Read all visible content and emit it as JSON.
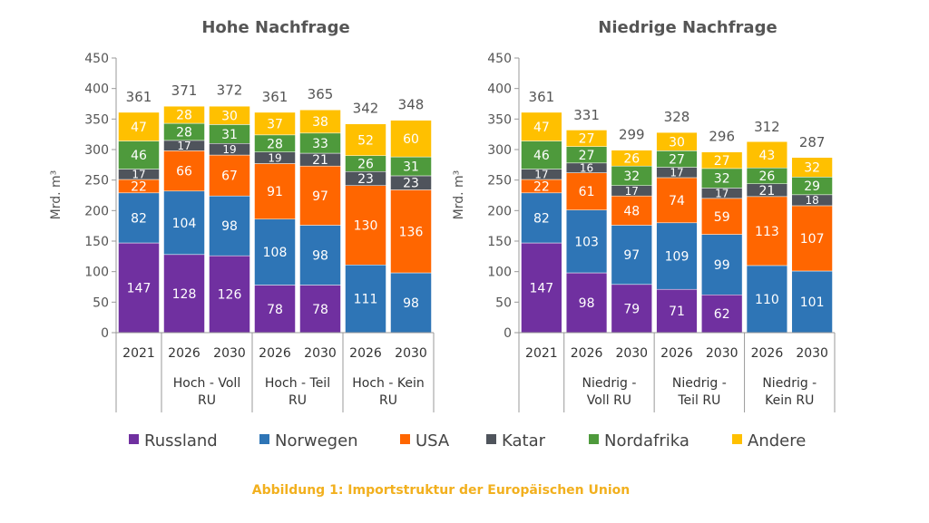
{
  "caption": "Abbildung 1: Importstruktur der Europäischen Union",
  "colors": {
    "Russland": "#7030a0",
    "Norwegen": "#2e75b6",
    "USA": "#ff6600",
    "Katar": "#4f545c",
    "Nordafrika": "#4e9a3c",
    "Andere": "#ffc000",
    "caption": "#f2b01e"
  },
  "legend": [
    "Russland",
    "Norwegen",
    "USA",
    "Katar",
    "Nordafrika",
    "Andere"
  ],
  "chart_data": [
    {
      "type": "bar",
      "stacked": true,
      "title": "Hohe Nachfrage",
      "ylabel": "Mrd. m³",
      "ylim": [
        0,
        450
      ],
      "yticks": [
        0,
        50,
        100,
        150,
        200,
        250,
        300,
        350,
        400,
        450
      ],
      "categories": [
        "2021",
        "2026",
        "2030",
        "2026",
        "2030",
        "2026",
        "2030"
      ],
      "groups": [
        {
          "label": "",
          "count": 1
        },
        {
          "label": "Hoch - Voll|RU",
          "count": 2
        },
        {
          "label": "Hoch - Teil|RU",
          "count": 2
        },
        {
          "label": "Hoch - Kein|RU",
          "count": 2
        }
      ],
      "totals": [
        361,
        371,
        372,
        361,
        365,
        342,
        348
      ],
      "series": [
        {
          "name": "Russland",
          "values": [
            147,
            128,
            126,
            78,
            78,
            0,
            0
          ]
        },
        {
          "name": "Norwegen",
          "values": [
            82,
            104,
            98,
            108,
            98,
            111,
            98
          ]
        },
        {
          "name": "USA",
          "values": [
            22,
            66,
            67,
            91,
            97,
            130,
            136
          ]
        },
        {
          "name": "Katar",
          "values": [
            17,
            17,
            19,
            19,
            21,
            23,
            23
          ]
        },
        {
          "name": "Nordafrika",
          "values": [
            46,
            28,
            31,
            28,
            33,
            26,
            31
          ]
        },
        {
          "name": "Andere",
          "values": [
            47,
            28,
            30,
            37,
            38,
            52,
            60
          ]
        }
      ]
    },
    {
      "type": "bar",
      "stacked": true,
      "title": "Niedrige Nachfrage",
      "ylabel": "Mrd. m³",
      "ylim": [
        0,
        450
      ],
      "yticks": [
        0,
        50,
        100,
        150,
        200,
        250,
        300,
        350,
        400,
        450
      ],
      "categories": [
        "2021",
        "2026",
        "2030",
        "2026",
        "2030",
        "2026",
        "2030"
      ],
      "groups": [
        {
          "label": "",
          "count": 1
        },
        {
          "label": "Niedrig -|Voll RU",
          "count": 2
        },
        {
          "label": "Niedrig -|Teil RU",
          "count": 2
        },
        {
          "label": "Niedrig -|Kein RU",
          "count": 2
        }
      ],
      "totals": [
        361,
        331,
        299,
        328,
        296,
        312,
        287
      ],
      "series": [
        {
          "name": "Russland",
          "values": [
            147,
            98,
            79,
            71,
            62,
            0,
            0
          ]
        },
        {
          "name": "Norwegen",
          "values": [
            82,
            103,
            97,
            109,
            99,
            110,
            101
          ]
        },
        {
          "name": "USA",
          "values": [
            22,
            61,
            48,
            74,
            59,
            113,
            107
          ]
        },
        {
          "name": "Katar",
          "values": [
            17,
            16,
            17,
            17,
            17,
            21,
            18
          ]
        },
        {
          "name": "Nordafrika",
          "values": [
            46,
            27,
            32,
            27,
            32,
            26,
            29
          ]
        },
        {
          "name": "Andere",
          "values": [
            47,
            27,
            26,
            30,
            27,
            43,
            32
          ]
        }
      ]
    }
  ]
}
